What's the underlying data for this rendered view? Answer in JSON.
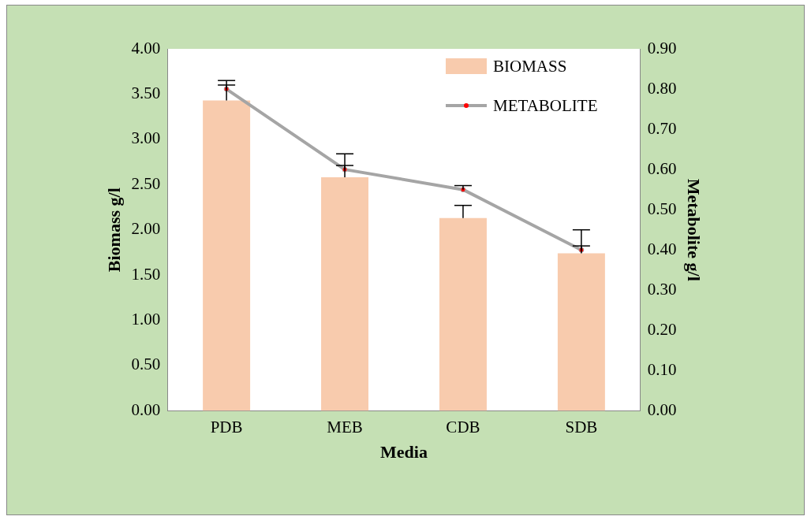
{
  "chart_data": {
    "type": "bar",
    "xlabel": "Media",
    "ylabel": "Biomass g/l",
    "y2label": "Metabolite g/l",
    "categories": [
      "PDB",
      "MEB",
      "CDB",
      "SDB"
    ],
    "series": [
      {
        "name": "BIOMASS",
        "color": "#f8cbad",
        "values": [
          3.43,
          2.58,
          2.13,
          1.74
        ],
        "errors": [
          [
            3.43,
            3.65
          ],
          [
            2.58,
            2.84
          ],
          [
            2.13,
            2.27
          ],
          [
            1.74,
            2.0
          ]
        ]
      },
      {
        "name": "METABOLITE",
        "type": "line",
        "axis": "y2",
        "color": "#a5a5a5",
        "values": [
          0.8,
          0.6,
          0.55,
          0.4
        ],
        "errors": [
          [
            0.8,
            0.81
          ],
          [
            0.6,
            0.61
          ],
          [
            0.55,
            0.56
          ],
          [
            0.4,
            0.41
          ]
        ]
      }
    ],
    "ylim": [
      0,
      4
    ],
    "yticks": [
      {
        "value": 0,
        "label": "0.00"
      },
      {
        "value": 0.5,
        "label": "0.50"
      },
      {
        "value": 1,
        "label": "1.00"
      },
      {
        "value": 1.5,
        "label": "1.50"
      },
      {
        "value": 2,
        "label": "2.00"
      },
      {
        "value": 2.5,
        "label": "2.50"
      },
      {
        "value": 3,
        "label": "3.00"
      },
      {
        "value": 3.5,
        "label": "3.50"
      },
      {
        "value": 4,
        "label": "4.00"
      }
    ],
    "y2lim": [
      0,
      0.9
    ],
    "y2ticks": [
      {
        "value": 0,
        "label": "0.00"
      },
      {
        "value": 0.1,
        "label": "0.10"
      },
      {
        "value": 0.2,
        "label": "0.20"
      },
      {
        "value": 0.3,
        "label": "0.30"
      },
      {
        "value": 0.4,
        "label": "0.40"
      },
      {
        "value": 0.5,
        "label": "0.50"
      },
      {
        "value": 0.6,
        "label": "0.60"
      },
      {
        "value": 0.7,
        "label": "0.70"
      },
      {
        "value": 0.8,
        "label": "0.80"
      },
      {
        "value": 0.9,
        "label": "0.90"
      }
    ],
    "grid": false,
    "legend": "top right",
    "marker": "circle",
    "line_style": "solid"
  }
}
